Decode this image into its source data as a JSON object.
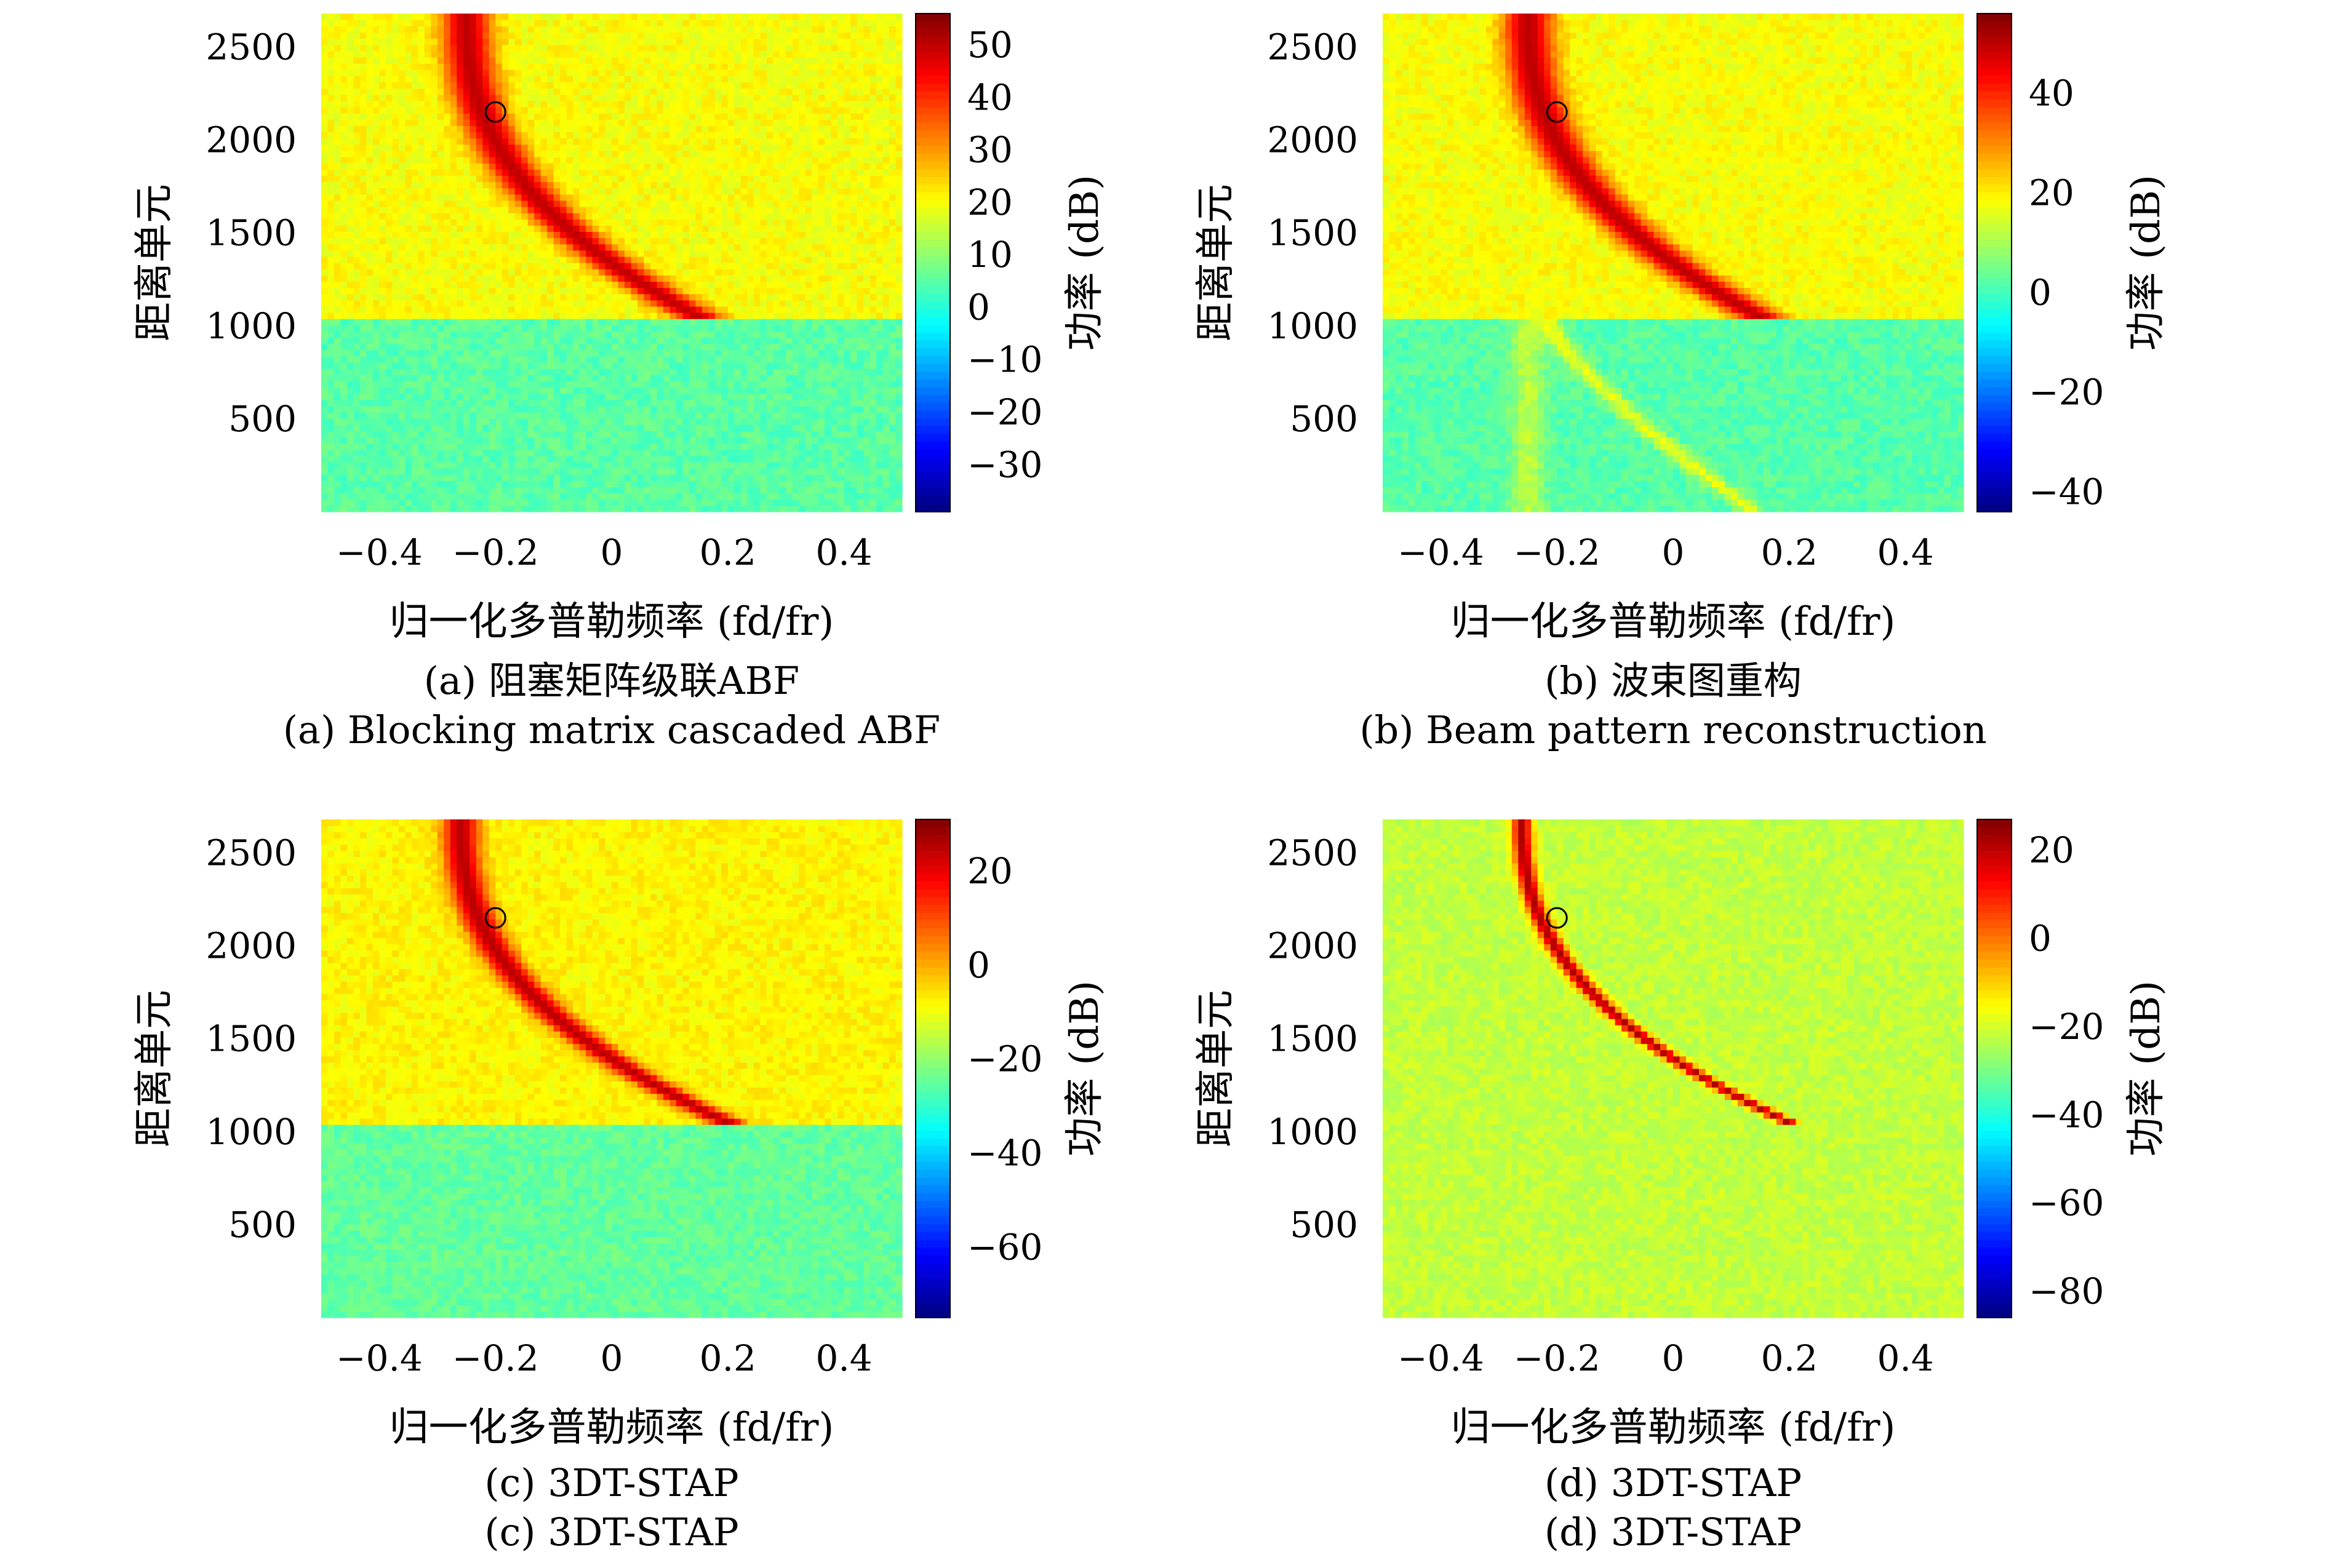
{
  "chart_data": [
    {
      "type": "heatmap",
      "caption_zh": "(a) 阻塞矩阵级联ABF",
      "caption_en": "(a) Blocking matrix cascaded ABF",
      "xlabel": "归一化多普勒频率 (fd/fr)",
      "ylabel": "距离单元",
      "xlim": [
        -0.5,
        0.5
      ],
      "ylim": [
        0,
        2680
      ],
      "xticks": [
        -0.4,
        -0.2,
        0,
        0.2,
        0.4
      ],
      "xtick_labels": [
        "−0.4",
        "−0.2",
        "0",
        "0.2",
        "0.4"
      ],
      "yticks": [
        500,
        1000,
        1500,
        2000,
        2500
      ],
      "ytick_labels": [
        "500",
        "1000",
        "1500",
        "2000",
        "2500"
      ],
      "colorbar": {
        "label": "功率 (dB)",
        "range": [
          -39,
          56
        ],
        "ticks": [
          50,
          40,
          30,
          20,
          10,
          0,
          -10,
          -20,
          -30
        ],
        "tick_labels": [
          "50",
          "40",
          "30",
          "20",
          "10",
          "0",
          "−10",
          "−20",
          "−30"
        ]
      },
      "target": {
        "x": -0.2,
        "y": 2150
      },
      "curve": {
        "x_at_1050": 0.15,
        "x_at_top": -0.25
      },
      "background_upper_db": 20,
      "background_lower_db": 5,
      "clutter_peak_db": 50,
      "range_boundary": 1050,
      "colormap": "jet"
    },
    {
      "type": "heatmap",
      "caption_zh": "(b) 波束图重构",
      "caption_en": "(b) Beam pattern reconstruction",
      "xlabel": "归一化多普勒频率 (fd/fr)",
      "ylabel": "距离单元",
      "xlim": [
        -0.5,
        0.5
      ],
      "ylim": [
        0,
        2680
      ],
      "xticks": [
        -0.4,
        -0.2,
        0,
        0.2,
        0.4
      ],
      "xtick_labels": [
        "−0.4",
        "−0.2",
        "0",
        "0.2",
        "0.4"
      ],
      "yticks": [
        500,
        1000,
        1500,
        2000,
        2500
      ],
      "ytick_labels": [
        "500",
        "1000",
        "1500",
        "2000",
        "2500"
      ],
      "colorbar": {
        "label": "功率 (dB)",
        "range": [
          -44,
          56
        ],
        "ticks": [
          40,
          20,
          0,
          -20,
          -40
        ],
        "tick_labels": [
          "40",
          "20",
          "0",
          "−20",
          "−40"
        ]
      },
      "target": {
        "x": -0.2,
        "y": 2150
      },
      "curve": {
        "x_at_1050": 0.15,
        "x_at_top": -0.25
      },
      "background_upper_db": 18,
      "background_lower_db": 2,
      "clutter_peak_db": 50,
      "range_boundary": 1050,
      "colormap": "jet"
    },
    {
      "type": "heatmap",
      "caption_zh": "(c) 3DT-STAP",
      "caption_en": "(c) 3DT-STAP",
      "xlabel": "归一化多普勒频率 (fd/fr)",
      "ylabel": "距离单元",
      "xlim": [
        -0.5,
        0.5
      ],
      "ylim": [
        0,
        2680
      ],
      "xticks": [
        -0.4,
        -0.2,
        0,
        0.2,
        0.4
      ],
      "xtick_labels": [
        "−0.4",
        "−0.2",
        "0",
        "0.2",
        "0.4"
      ],
      "yticks": [
        500,
        1000,
        1500,
        2000,
        2500
      ],
      "ytick_labels": [
        "500",
        "1000",
        "1500",
        "2000",
        "2500"
      ],
      "colorbar": {
        "label": "功率 (dB)",
        "range": [
          -75,
          31
        ],
        "ticks": [
          20,
          0,
          -20,
          -40,
          -60
        ],
        "tick_labels": [
          "20",
          "0",
          "−20",
          "−40",
          "−60"
        ]
      },
      "target": {
        "x": -0.2,
        "y": 2150
      },
      "curve": {
        "x_at_1050": 0.2,
        "x_at_top": -0.26
      },
      "background_upper_db": -8,
      "background_lower_db": -25,
      "clutter_peak_db": 25,
      "range_boundary": 1050,
      "colormap": "jet"
    },
    {
      "type": "heatmap",
      "caption_zh": "(d) 3DT-STAP",
      "caption_en": "(d) 3DT-STAP",
      "xlabel": "归一化多普勒频率 (fd/fr)",
      "ylabel": "距离单元",
      "xlim": [
        -0.5,
        0.5
      ],
      "ylim": [
        0,
        2680
      ],
      "xticks": [
        -0.4,
        -0.2,
        0,
        0.2,
        0.4
      ],
      "xtick_labels": [
        "−0.4",
        "−0.2",
        "0",
        "0.2",
        "0.4"
      ],
      "yticks": [
        500,
        1000,
        1500,
        2000,
        2500
      ],
      "ytick_labels": [
        "500",
        "1000",
        "1500",
        "2000",
        "2500"
      ],
      "colorbar": {
        "label": "功率 (dB)",
        "range": [
          -86,
          27
        ],
        "ticks": [
          20,
          0,
          -20,
          -40,
          -60,
          -80
        ],
        "tick_labels": [
          "20",
          "0",
          "−20",
          "−40",
          "−60",
          "−80"
        ]
      },
      "target": {
        "x": -0.2,
        "y": 2150
      },
      "curve": {
        "x_at_1050": 0.2,
        "x_at_top": -0.26
      },
      "background_upper_db": -22,
      "background_lower_db": -22,
      "clutter_peak_db": 22,
      "range_boundary": 1050,
      "colormap": "jet"
    }
  ]
}
